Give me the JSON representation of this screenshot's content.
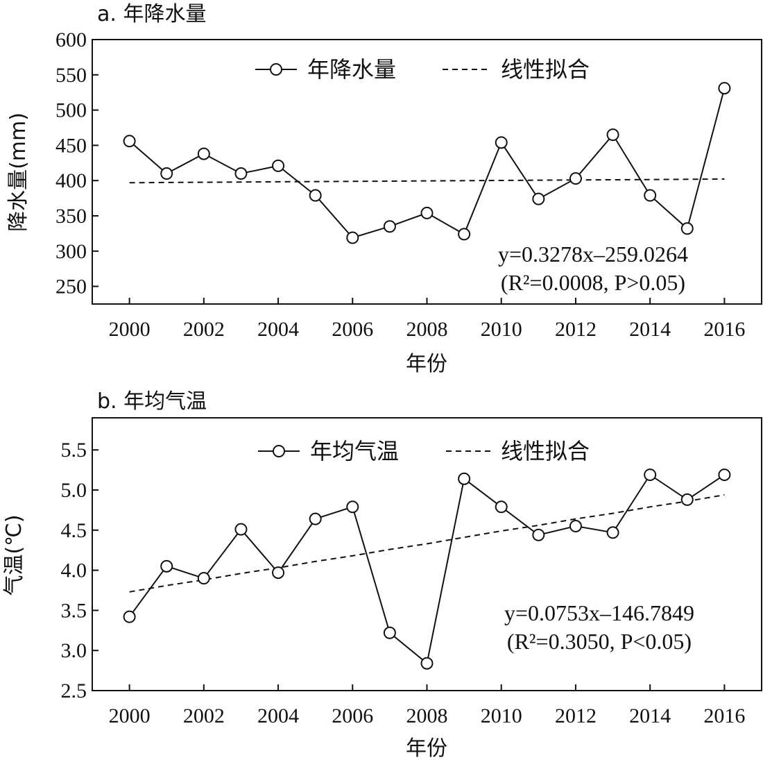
{
  "chart_data": [
    {
      "type": "line",
      "title": "a. 年降水量",
      "xlabel": "年份",
      "ylabel": "降水量(mm)",
      "x": [
        2000,
        2001,
        2002,
        2003,
        2004,
        2005,
        2006,
        2007,
        2008,
        2009,
        2010,
        2011,
        2012,
        2013,
        2014,
        2015,
        2016
      ],
      "xticks": [
        "2000",
        "2002",
        "2004",
        "2006",
        "2008",
        "2010",
        "2012",
        "2014",
        "2016"
      ],
      "yticks": [
        "250",
        "300",
        "350",
        "400",
        "450",
        "500",
        "550",
        "600"
      ],
      "xlim": [
        1999,
        2017
      ],
      "ylim": [
        225,
        600
      ],
      "series": [
        {
          "name": "年降水量",
          "style": "solid-circle-markers",
          "values": [
            456,
            410,
            438,
            410,
            421,
            379,
            319,
            335,
            354,
            324,
            454,
            374,
            403,
            465,
            379,
            332,
            531
          ]
        },
        {
          "name": "线性拟合",
          "style": "dashed",
          "values": [
            396.9,
            397.3,
            397.6,
            397.9,
            398.3,
            398.6,
            398.9,
            399.2,
            399.6,
            399.9,
            400.2,
            400.6,
            400.9,
            401.2,
            401.5,
            401.9,
            402.2
          ]
        }
      ],
      "legend_position": "top-center",
      "annotation": {
        "line1": "y=0.3278x–259.0264",
        "line2": "(R²=0.0008, P>0.05)"
      }
    },
    {
      "type": "line",
      "title": "b. 年均气温",
      "xlabel": "年份",
      "ylabel": "气温(℃)",
      "x": [
        2000,
        2001,
        2002,
        2003,
        2004,
        2005,
        2006,
        2007,
        2008,
        2009,
        2010,
        2011,
        2012,
        2013,
        2014,
        2015,
        2016
      ],
      "xticks": [
        "2000",
        "2002",
        "2004",
        "2006",
        "2008",
        "2010",
        "2012",
        "2014",
        "2016"
      ],
      "yticks": [
        "2.5",
        "3.0",
        "3.5",
        "4.0",
        "4.5",
        "5.0",
        "5.5"
      ],
      "xlim": [
        1999,
        2017
      ],
      "ylim": [
        2.5,
        5.9
      ],
      "series": [
        {
          "name": "年均气温",
          "style": "solid-circle-markers",
          "values": [
            3.42,
            4.05,
            3.9,
            4.51,
            3.97,
            4.64,
            4.79,
            3.22,
            2.84,
            5.14,
            4.79,
            4.44,
            4.55,
            4.47,
            5.19,
            4.88,
            5.19
          ]
        },
        {
          "name": "线性拟合",
          "style": "dashed",
          "values": [
            3.73,
            3.81,
            3.88,
            3.96,
            4.03,
            4.11,
            4.18,
            4.26,
            4.33,
            4.41,
            4.49,
            4.56,
            4.64,
            4.71,
            4.79,
            4.86,
            4.94
          ]
        }
      ],
      "legend_position": "top-center",
      "annotation": {
        "line1": "y=0.0753x–146.7849",
        "line2": "(R²=0.3050, P<0.05)"
      }
    }
  ]
}
